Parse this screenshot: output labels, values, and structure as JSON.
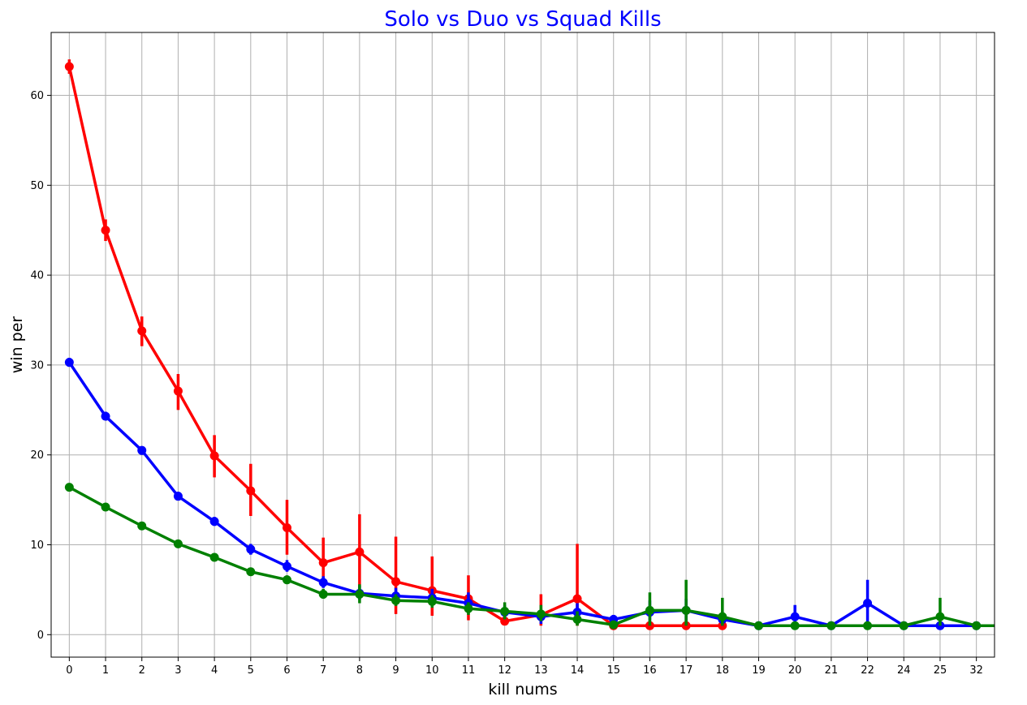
{
  "chart_data": {
    "type": "line",
    "title": "Solo vs Duo vs Squad Kills",
    "xlabel": "kill nums",
    "ylabel": "win per",
    "categories": [
      "0",
      "1",
      "2",
      "3",
      "4",
      "5",
      "6",
      "7",
      "8",
      "9",
      "10",
      "11",
      "12",
      "13",
      "14",
      "15",
      "16",
      "17",
      "18",
      "19",
      "20",
      "21",
      "22",
      "24",
      "25",
      "32"
    ],
    "ylim": [
      -2.5,
      67
    ],
    "yticks": [
      0,
      10,
      20,
      30,
      40,
      50,
      60
    ],
    "grid": true,
    "series": [
      {
        "color": "#ff0000",
        "values": [
          63.2,
          45.0,
          33.8,
          27.1,
          19.9,
          16.0,
          11.9,
          8.0,
          9.2,
          5.9,
          4.9,
          4.0,
          1.5,
          2.2,
          4.0,
          1.0,
          1.0,
          1.0,
          1.0,
          null,
          null,
          null,
          null,
          null,
          null,
          null
        ],
        "err": [
          [
            62.4,
            64.0
          ],
          [
            43.8,
            46.2
          ],
          [
            32.1,
            35.4
          ],
          [
            25.0,
            29.0
          ],
          [
            17.5,
            22.2
          ],
          [
            13.2,
            19.0
          ],
          [
            8.9,
            15.0
          ],
          [
            5.7,
            10.8
          ],
          [
            5.3,
            13.4
          ],
          [
            2.3,
            10.9
          ],
          [
            2.1,
            8.7
          ],
          [
            1.6,
            6.6
          ],
          null,
          [
            1.0,
            4.5
          ],
          [
            1.0,
            10.1
          ],
          null,
          null,
          null,
          null,
          null,
          null,
          null,
          null,
          null,
          null,
          null
        ]
      },
      {
        "color": "#0000ff",
        "values": [
          30.3,
          24.3,
          20.5,
          15.4,
          12.6,
          9.5,
          7.6,
          5.8,
          4.6,
          4.3,
          4.1,
          3.5,
          2.5,
          2.0,
          2.5,
          1.7,
          2.5,
          2.7,
          1.7,
          1.0,
          2.0,
          1.0,
          3.5,
          1.0,
          1.0,
          1.0
        ],
        "err": [
          [
            29.8,
            30.8
          ],
          [
            23.9,
            24.8
          ],
          [
            20.0,
            20.9
          ],
          [
            15.0,
            15.9
          ],
          [
            12.1,
            13.1
          ],
          [
            8.9,
            10.1
          ],
          [
            7.0,
            8.3
          ],
          [
            5.2,
            6.5
          ],
          [
            3.9,
            5.4
          ],
          [
            3.4,
            5.2
          ],
          [
            3.2,
            5.1
          ],
          [
            2.4,
            4.7
          ],
          [
            1.8,
            3.3
          ],
          [
            1.2,
            2.9
          ],
          [
            1.6,
            3.5
          ],
          [
            1.2,
            2.2
          ],
          [
            1.5,
            3.8
          ],
          [
            1.5,
            4.0
          ],
          [
            1.0,
            2.6
          ],
          null,
          [
            1.0,
            3.3
          ],
          null,
          [
            1.0,
            6.1
          ],
          null,
          null,
          null
        ]
      },
      {
        "color": "#008000",
        "values": [
          16.4,
          14.2,
          12.1,
          10.1,
          8.6,
          7.0,
          6.1,
          4.5,
          4.5,
          3.8,
          3.7,
          2.9,
          2.6,
          2.3,
          1.7,
          1.1,
          2.7,
          2.7,
          2.0,
          1.0,
          1.0,
          1.0,
          1.0,
          1.0,
          2.0,
          1.0
        ],
        "err": [
          [
            16.1,
            16.8
          ],
          [
            13.9,
            14.6
          ],
          [
            11.8,
            12.5
          ],
          [
            9.8,
            10.5
          ],
          [
            8.3,
            9.0
          ],
          [
            6.7,
            7.4
          ],
          [
            5.7,
            6.6
          ],
          [
            4.0,
            5.1
          ],
          [
            3.5,
            5.6
          ],
          [
            3.2,
            4.5
          ],
          [
            3.0,
            4.4
          ],
          [
            2.2,
            3.6
          ],
          [
            1.7,
            3.6
          ],
          [
            1.5,
            3.3
          ],
          [
            1.0,
            2.6
          ],
          [
            1.0,
            1.3
          ],
          [
            1.0,
            4.7
          ],
          [
            1.0,
            6.1
          ],
          [
            1.0,
            4.1
          ],
          null,
          null,
          null,
          null,
          null,
          [
            1.0,
            4.1
          ],
          null
        ]
      }
    ]
  },
  "colors": {
    "title": "#0000ff",
    "grid": "#b0b0b0",
    "axis": "#000000"
  }
}
